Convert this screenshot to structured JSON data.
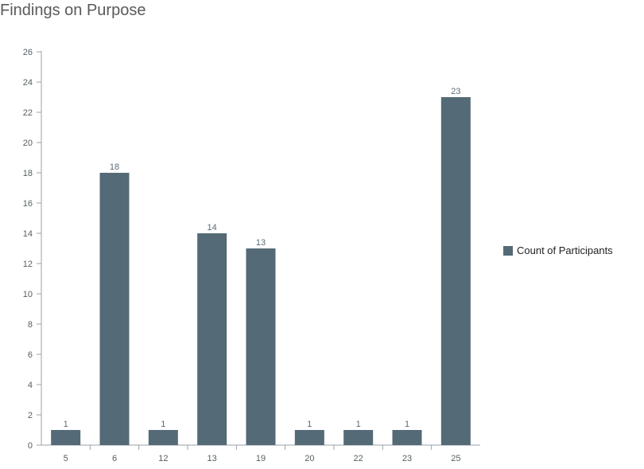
{
  "chart_data": {
    "type": "bar",
    "title": "Findings on Purpose",
    "categories": [
      "5",
      "6",
      "12",
      "13",
      "19",
      "20",
      "22",
      "23",
      "25"
    ],
    "series": [
      {
        "name": "Count of Participants",
        "values": [
          1,
          18,
          1,
          14,
          13,
          1,
          1,
          1,
          23
        ]
      }
    ],
    "data_labels": [
      "1",
      "18",
      "1",
      "14",
      "13",
      "1",
      "1",
      "1",
      "23"
    ],
    "ylim": [
      0,
      26
    ],
    "yticks": [
      0,
      2,
      4,
      6,
      8,
      10,
      12,
      14,
      16,
      18,
      20,
      22,
      24,
      26
    ],
    "grid": false,
    "legend_position": "right",
    "bar_color": "#546a76"
  }
}
